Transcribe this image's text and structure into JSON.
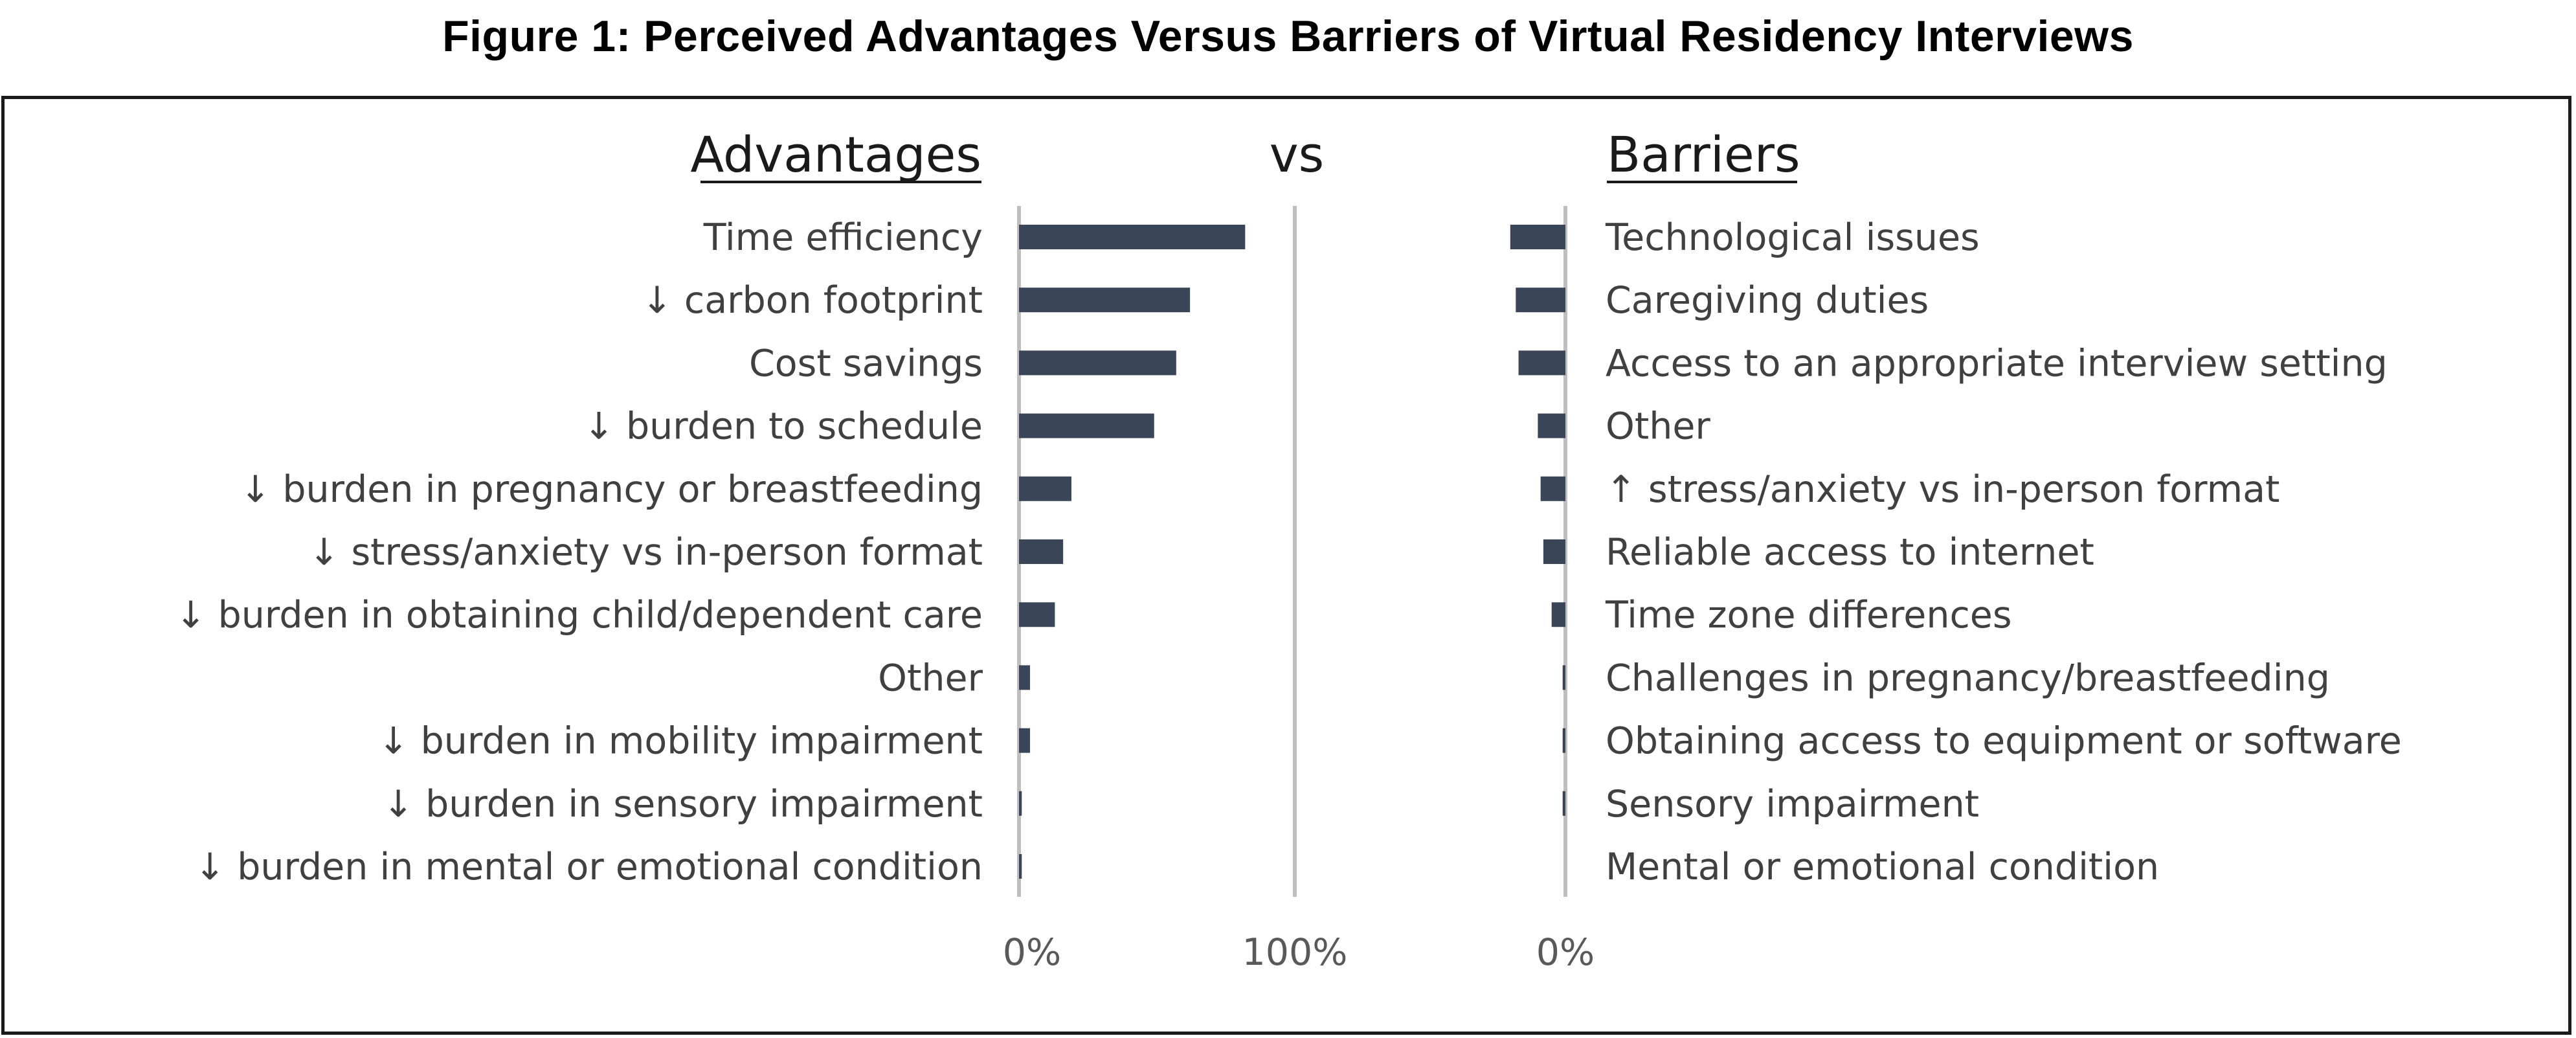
{
  "figure": {
    "title": "Figure 1: Perceived Advantages Versus Barriers of Virtual Residency Interviews"
  },
  "chart_data": {
    "type": "bar",
    "orientation": "horizontal",
    "bar_color": "#3a4657",
    "axis_line_color": "#bfbfbf",
    "left_panel": {
      "heading": "Advantages",
      "direction": "right",
      "xlim": [
        0,
        100
      ],
      "ticks": [
        "0%",
        "100%"
      ],
      "categories": [
        "Time efficiency",
        "↓ carbon footprint",
        "Cost savings",
        "↓ burden to schedule",
        "↓ burden in pregnancy or breastfeeding",
        "↓ stress/anxiety vs in-person format",
        "↓ burden in obtaining child/dependent care",
        "Other",
        "↓ burden in mobility impairment",
        "↓ burden in sensory impairment",
        "↓ burden in mental or emotional condition"
      ],
      "values": [
        82,
        62,
        57,
        49,
        19,
        16,
        13,
        4,
        4,
        1,
        1
      ]
    },
    "center_label": "vs",
    "right_panel": {
      "heading": "Barriers",
      "direction": "left",
      "ticks": [
        "0%"
      ],
      "categories": [
        "Technological issues",
        "Caregiving duties",
        "Access to an appropriate interview setting",
        "Other",
        "↑ stress/anxiety vs in-person format",
        "Reliable access  to internet",
        "Time zone differences",
        "Challenges in pregnancy/breastfeeding",
        "Obtaining access to equipment or software",
        "Sensory impairment",
        "Mental or emotional condition"
      ],
      "values": [
        20,
        18,
        17,
        10,
        9,
        8,
        5,
        1,
        1,
        1,
        0
      ]
    }
  }
}
